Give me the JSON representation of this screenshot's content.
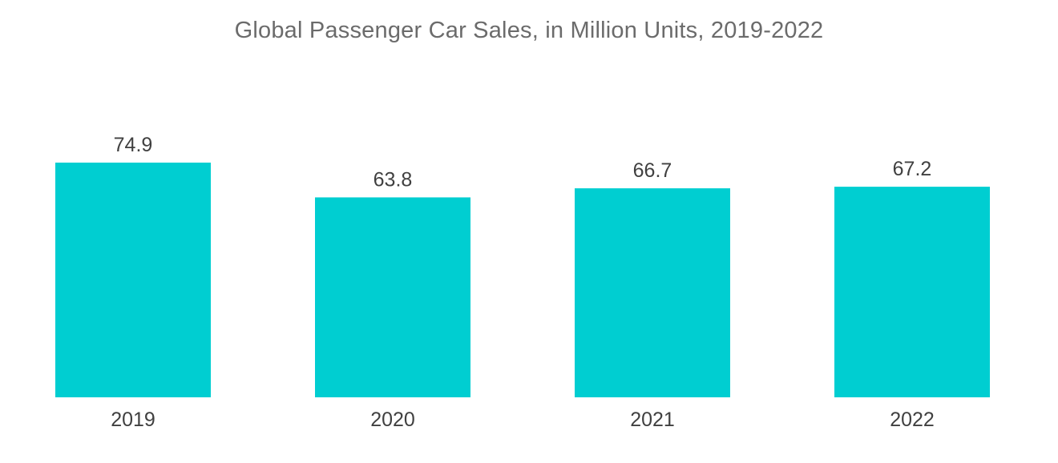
{
  "chart_data": {
    "type": "bar",
    "title": "Global Passenger Car Sales, in Million Units, 2019-2022",
    "categories": [
      "2019",
      "2020",
      "2021",
      "2022"
    ],
    "values": [
      74.9,
      63.8,
      66.7,
      67.2
    ],
    "data_labels": [
      "74.9",
      "63.8",
      "66.7",
      "67.2"
    ],
    "xlabel": "",
    "ylabel": "",
    "ylim": [
      0,
      74.9
    ],
    "grid": false,
    "legend": "none",
    "bar_color": "#00CED1"
  }
}
